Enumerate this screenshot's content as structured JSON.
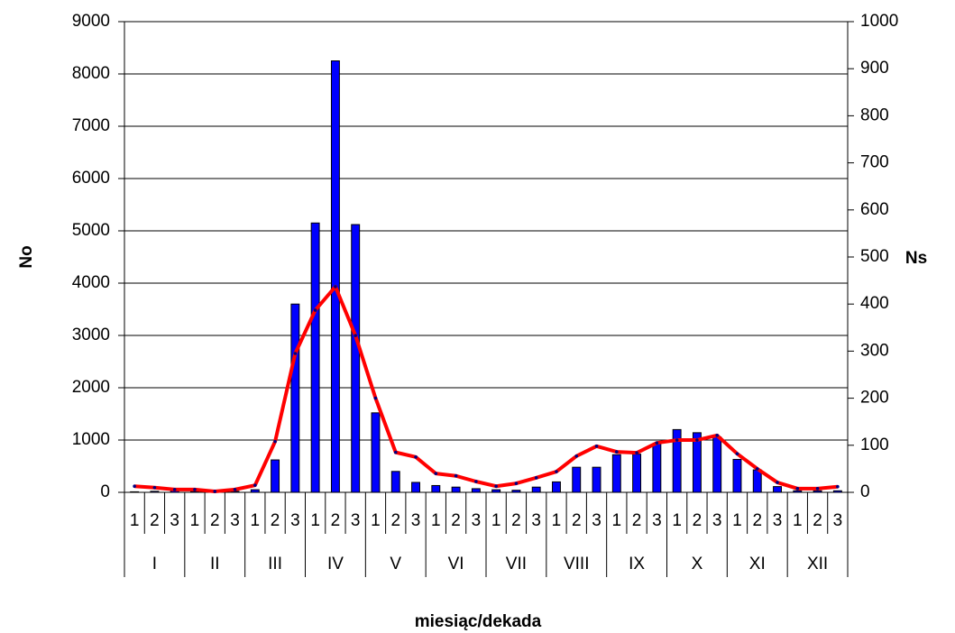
{
  "chart_data": {
    "type": "bar-line",
    "ylabel": "No",
    "y2label": "Ns",
    "xlabel": "miesiąc/dekada",
    "categories": [
      "1",
      "2",
      "3",
      "1",
      "2",
      "3",
      "1",
      "2",
      "3",
      "1",
      "2",
      "3",
      "1",
      "2",
      "3",
      "1",
      "2",
      "3",
      "1",
      "2",
      "3",
      "1",
      "2",
      "3",
      "1",
      "2",
      "3",
      "1",
      "2",
      "3",
      "1",
      "2",
      "3",
      "1",
      "2",
      "3"
    ],
    "groups": [
      "I",
      "II",
      "III",
      "IV",
      "V",
      "VI",
      "VII",
      "VIII",
      "IX",
      "X",
      "XI",
      "XII"
    ],
    "series": [
      {
        "type": "bar",
        "axis": "y",
        "color": "#0000ff",
        "values": [
          10,
          20,
          30,
          20,
          10,
          20,
          50,
          620,
          3600,
          5150,
          8250,
          5120,
          1520,
          400,
          190,
          130,
          100,
          70,
          50,
          40,
          100,
          200,
          480,
          480,
          720,
          730,
          930,
          1200,
          1140,
          1060,
          630,
          430,
          110,
          30,
          30,
          30
        ]
      },
      {
        "type": "line",
        "axis": "y2",
        "color": "#ff0000",
        "marker_color": "#000080",
        "values": [
          13,
          10,
          6,
          6,
          2,
          6,
          15,
          108,
          295,
          387,
          437,
          333,
          200,
          85,
          75,
          40,
          35,
          23,
          13,
          19,
          31,
          44,
          77,
          98,
          86,
          84,
          105,
          111,
          111,
          121,
          82,
          50,
          21,
          8,
          8,
          12
        ]
      }
    ],
    "ylim": [
      0,
      9000
    ],
    "yticks": [
      0,
      1000,
      2000,
      3000,
      4000,
      5000,
      6000,
      7000,
      8000,
      9000
    ],
    "y2lim": [
      0,
      1000
    ],
    "y2ticks": [
      0,
      100,
      200,
      300,
      400,
      500,
      600,
      700,
      800,
      900,
      1000
    ],
    "grid": true
  }
}
